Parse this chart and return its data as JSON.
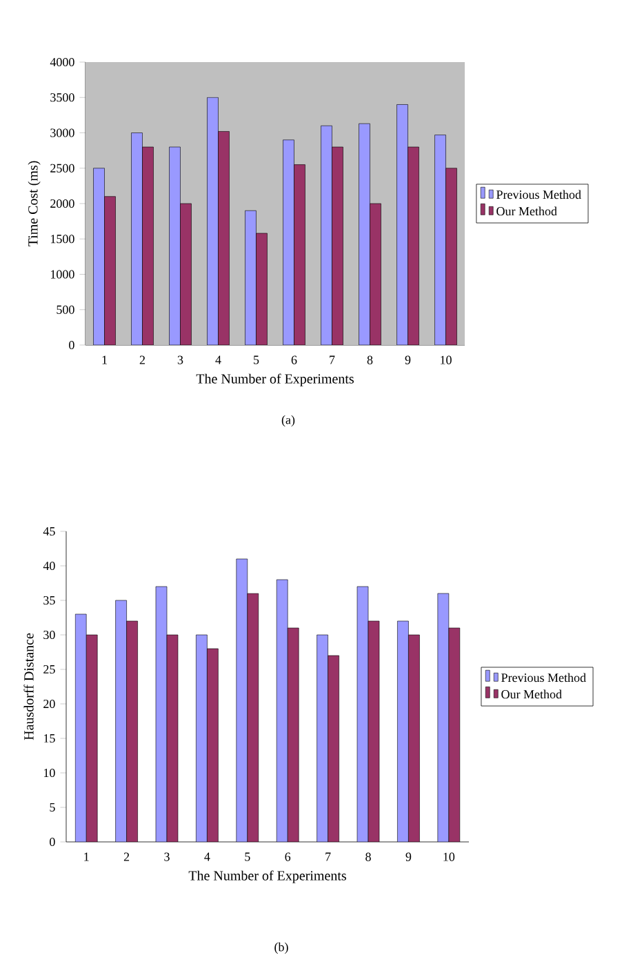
{
  "chart_data": [
    {
      "type": "bar",
      "ylabel": "Time Cost (ms)",
      "xlabel": "The Number of Experiments",
      "categories": [
        "1",
        "2",
        "3",
        "4",
        "5",
        "6",
        "7",
        "8",
        "9",
        "10"
      ],
      "series": [
        {
          "name": "Previous Method",
          "color": "#9999ff",
          "values": [
            2500,
            3000,
            2800,
            3500,
            1900,
            2900,
            3100,
            3130,
            3400,
            2970
          ]
        },
        {
          "name": "Our Method",
          "color": "#993366",
          "values": [
            2100,
            2800,
            2000,
            3020,
            1580,
            2550,
            2800,
            2000,
            2800,
            2500
          ]
        }
      ],
      "ylim": [
        0,
        4000
      ],
      "yticks": [
        0,
        500,
        1000,
        1500,
        2000,
        2500,
        3000,
        3500,
        4000
      ],
      "legend": "right",
      "annotations": [
        "(a)"
      ]
    },
    {
      "type": "bar",
      "ylabel": "Hausdorff Distance",
      "xlabel": "The Number of Experiments",
      "categories": [
        "1",
        "2",
        "3",
        "4",
        "5",
        "6",
        "7",
        "8",
        "9",
        "10"
      ],
      "series": [
        {
          "name": "Previous Method",
          "color": "#9999ff",
          "values": [
            33,
            35,
            37,
            30,
            41,
            38,
            30,
            37,
            32,
            36
          ]
        },
        {
          "name": "Our Method",
          "color": "#993366",
          "values": [
            30,
            32,
            30,
            28,
            36,
            31,
            27,
            32,
            30,
            31
          ]
        }
      ],
      "ylim": [
        0,
        45
      ],
      "yticks": [
        0,
        5,
        10,
        15,
        20,
        25,
        30,
        35,
        40,
        45
      ],
      "legend": "right",
      "annotations": [
        "(b)"
      ]
    }
  ]
}
